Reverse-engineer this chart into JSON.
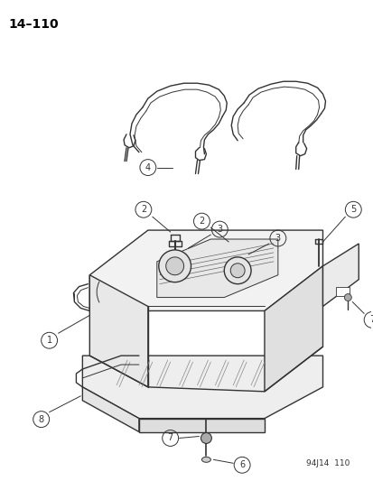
{
  "title": "14–110",
  "footer": "94J14  110",
  "background_color": "#ffffff",
  "line_color": "#333333",
  "fig_width": 4.14,
  "fig_height": 5.33,
  "dpi": 100
}
